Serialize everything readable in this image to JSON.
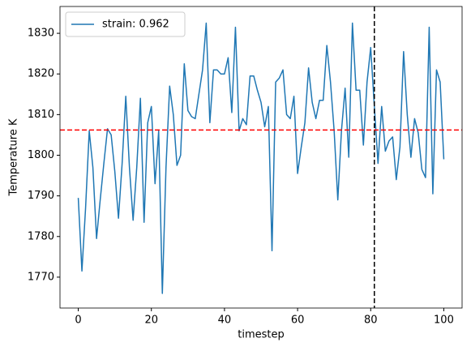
{
  "chart_data": {
    "type": "line",
    "xlabel": "timestep",
    "ylabel": "Temperature K",
    "x": [
      0,
      1,
      2,
      3,
      4,
      5,
      6,
      7,
      8,
      9,
      10,
      11,
      12,
      13,
      14,
      15,
      16,
      17,
      18,
      19,
      20,
      21,
      22,
      23,
      24,
      25,
      26,
      27,
      28,
      29,
      30,
      31,
      32,
      33,
      34,
      35,
      36,
      37,
      38,
      39,
      40,
      41,
      42,
      43,
      44,
      45,
      46,
      47,
      48,
      49,
      50,
      51,
      52,
      53,
      54,
      55,
      56,
      57,
      58,
      59,
      60,
      61,
      62,
      63,
      64,
      65,
      66,
      67,
      68,
      69,
      70,
      71,
      72,
      73,
      74,
      75,
      76,
      77,
      78,
      79,
      80,
      81,
      82,
      83,
      84,
      85,
      86,
      87,
      88,
      89,
      90,
      91,
      92,
      93,
      94,
      95,
      96,
      97,
      98,
      99,
      100
    ],
    "series": [
      {
        "name": "strain: 0.962",
        "color": "#1f77b4",
        "values": [
          1789.5,
          1771.5,
          1787,
          1806,
          1797,
          1779.5,
          1789,
          1798,
          1806.5,
          1805,
          1796,
          1784.5,
          1798,
          1814.5,
          1797,
          1784,
          1797,
          1814,
          1783.5,
          1808,
          1812,
          1793,
          1806,
          1766,
          1797,
          1817,
          1810,
          1797.5,
          1800,
          1822.5,
          1811,
          1809.5,
          1809,
          1815,
          1821,
          1832.5,
          1808,
          1821,
          1821,
          1820,
          1820,
          1824,
          1810.5,
          1831.5,
          1806,
          1809,
          1807.5,
          1819.5,
          1819.5,
          1816,
          1813,
          1807,
          1812,
          1776.5,
          1818,
          1819,
          1821,
          1810,
          1809,
          1814.5,
          1795.5,
          1802,
          1808,
          1821.5,
          1813,
          1809,
          1813.5,
          1813.5,
          1827,
          1818,
          1806,
          1789,
          1806,
          1816.5,
          1799.5,
          1832.5,
          1816,
          1816,
          1802.5,
          1818,
          1826.5,
          1812,
          1798,
          1812,
          1801,
          1803.5,
          1804.5,
          1794,
          1802,
          1825.5,
          1810,
          1799.5,
          1809,
          1805.5,
          1796.5,
          1794.5,
          1831.5,
          1790.5,
          1821,
          1818,
          1799
        ]
      }
    ],
    "hline": {
      "y": 1806.2,
      "color": "#ff0000"
    },
    "vline": {
      "x": 81,
      "color": "#000000"
    },
    "xlim": [
      -5,
      105
    ],
    "xticks": [
      0,
      20,
      40,
      60,
      80,
      100
    ],
    "ylim": [
      1762.4,
      1836.6
    ],
    "yticks": [
      1770,
      1780,
      1790,
      1800,
      1810,
      1820,
      1830
    ],
    "legend": "upper left"
  }
}
